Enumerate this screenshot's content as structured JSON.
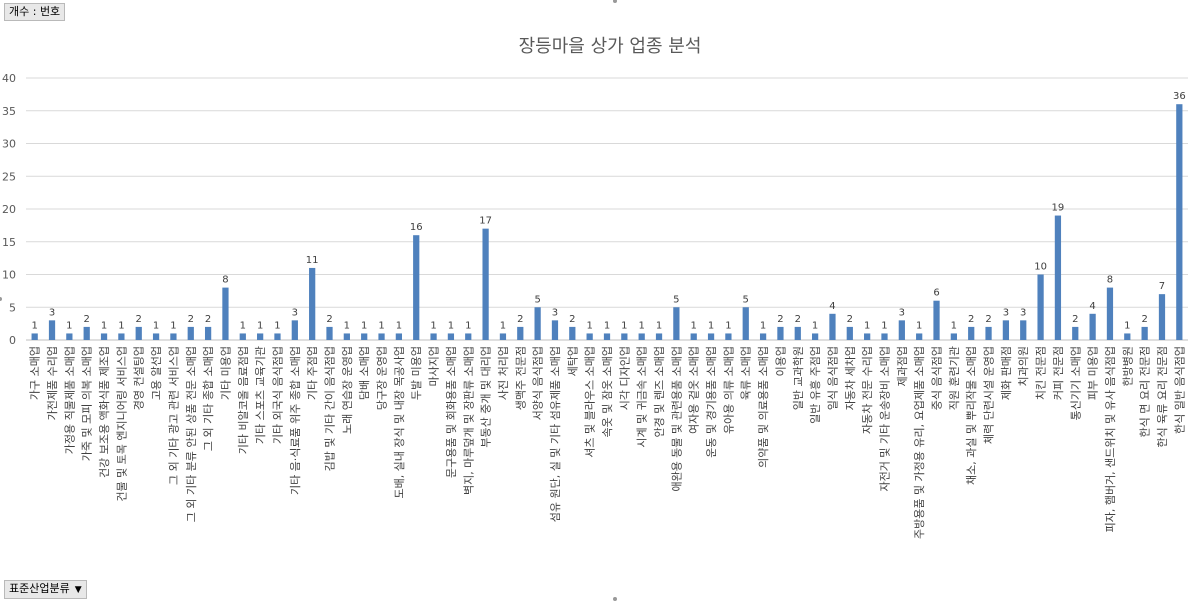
{
  "pivot": {
    "value_field": "개수 : 번호",
    "row_field": "표준산업분류",
    "row_field_icon": "dropdown-arrow-icon"
  },
  "chart_data": {
    "type": "bar",
    "title": "장등마을 상가 업종 분석",
    "xlabel": "",
    "ylabel": "",
    "ylim": [
      0,
      40
    ],
    "yticks": [
      0,
      5,
      10,
      15,
      20,
      25,
      30,
      35,
      40
    ],
    "grid": true,
    "legend": "none",
    "bar_color": "#4f81bd",
    "categories": [
      "가구 소매업",
      "가전제품 수리업",
      "가정용 직물제품 소매업",
      "가죽 및 모피 의복 소매업",
      "건강 보조용 액화식품 제조업",
      "건물 및 토목 엔지니어링 서비스업",
      "경영 컨설팅업",
      "고용 알선업",
      "그 외 기타 광고 관련 서비스업",
      "그 외 기타 분류 안된 상품 전문 소매업",
      "그 외 기타 종합 소매업",
      "기타 미용업",
      "기타 비알코올 음료점업",
      "기타 스포츠 교육기관",
      "기타 외국식 음식점업",
      "기타 음·식료품 위주 종합 소매업",
      "기타 주점업",
      "김밥 및 기타 간이 음식점업",
      "노래 연습장 운영업",
      "담배 소매업",
      "당구장 운영업",
      "도배, 실내 장식 및 내장 목공사업",
      "두발 미용업",
      "마사지업",
      "문구용품 및 회화용품 소매업",
      "벽지, 마루덮개 및 장판류 소매업",
      "부동산 중개 및 대리업",
      "사진 처리업",
      "생맥주 전문점",
      "서양식 음식점업",
      "섬유 원단, 실 및 기타 섬유제품 소매업",
      "세탁업",
      "셔츠 및 블라우스 소매업",
      "속옷 및 잠옷 소매업",
      "시각 디자인업",
      "시계 및 귀금속 소매업",
      "안경 및 렌즈 소매업",
      "애완용 동물 및 관련용품 소매업",
      "여자용 겉옷 소매업",
      "운동 및 경기용품 소매업",
      "유아용 의류 소매업",
      "육류 소매업",
      "의약품 및 의료용품 소매업",
      "이용업",
      "일반 교과학원",
      "일반 유흥 주점업",
      "일식 음식점업",
      "자동차 세차업",
      "자동차 전문 수리업",
      "자전거 및 기타 운송장비 소매업",
      "제과점업",
      "주방용품 및 가정용 유리, 요업제품 소매업",
      "중식 음식점업",
      "직원 훈련기관",
      "채소, 과실 및 뿌리작물 소매업",
      "체력 단련시설 운영업",
      "제화 판매점",
      "치과의원",
      "치킨 전문점",
      "커피 전문점",
      "통신기기 소매업",
      "피부 미용업",
      "피자, 햄버거, 샌드위치 및 유사 음식점업",
      "한방병원",
      "한식 면 요리 전문점",
      "한식 육류 요리 전문점",
      "한식 일반 음식점업"
    ],
    "values": [
      1,
      3,
      1,
      2,
      1,
      1,
      2,
      1,
      1,
      2,
      2,
      8,
      1,
      1,
      1,
      3,
      11,
      2,
      1,
      1,
      1,
      1,
      16,
      1,
      1,
      1,
      17,
      1,
      2,
      5,
      3,
      2,
      1,
      1,
      1,
      1,
      1,
      5,
      1,
      1,
      1,
      5,
      1,
      2,
      2,
      1,
      4,
      2,
      1,
      1,
      3,
      1,
      6,
      1,
      2,
      2,
      3,
      3,
      10,
      19,
      2,
      4,
      8,
      1,
      2,
      7,
      36
    ]
  }
}
